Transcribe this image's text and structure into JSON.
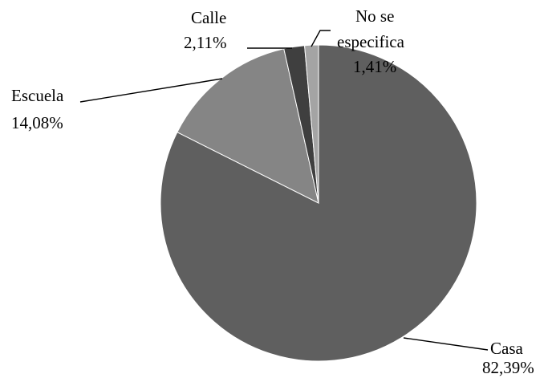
{
  "chart_data": {
    "type": "pie",
    "title": "",
    "slices": [
      {
        "label": "Casa",
        "value": 82.39,
        "value_label": "82,39%",
        "color": "#5f5f5f"
      },
      {
        "label": "Escuela",
        "value": 14.08,
        "value_label": "14,08%",
        "color": "#858585"
      },
      {
        "label": "Calle",
        "value": 2.11,
        "value_label": "2,11%",
        "color": "#3f3f3f"
      },
      {
        "label": "No se especifica",
        "label_lines": [
          "No se",
          "especifica"
        ],
        "value": 1.41,
        "value_label": "1,41%",
        "color": "#a4a4a4"
      }
    ]
  }
}
